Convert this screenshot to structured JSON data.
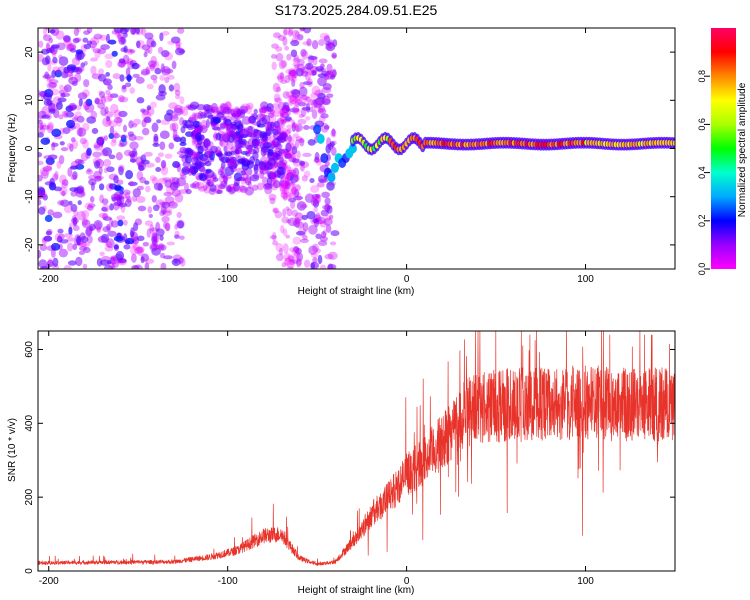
{
  "title": "S173.2025.284.09.51.E25",
  "colors": {
    "signal": "#e8332b",
    "frame": "#000000",
    "background": "#ffffff"
  },
  "chart_data": [
    {
      "type": "heatmap",
      "name": "spectrogram",
      "xlabel": "Height of straight line (km)",
      "ylabel": "Frequency (Hz)",
      "xlim": [
        -206,
        150
      ],
      "ylim": [
        -25,
        25
      ],
      "xticks": [
        -200,
        -100,
        0,
        100
      ],
      "yticks": [
        -20,
        -10,
        0,
        10,
        20
      ],
      "colorbar": {
        "label": "Normalized spectral amplitude",
        "range": [
          0,
          1
        ],
        "ticks": [
          "0.0",
          "0.2",
          "0.4",
          "0.6",
          "0.8"
        ],
        "colormap": [
          "#ff00ff",
          "#9900ff",
          "#0000ff",
          "#00aaff",
          "#00ffcc",
          "#00ff00",
          "#aaff00",
          "#ffff00",
          "#ff8800",
          "#ff0000",
          "#ff0066"
        ]
      },
      "features": {
        "noise_region_km": [
          -206,
          -40
        ],
        "noise_amplitude": 0.15,
        "carrier_start_km": -30,
        "carrier_frequency_hz": 1,
        "carrier_peak_amplitude": 0.9
      }
    },
    {
      "type": "line",
      "name": "snr",
      "xlabel": "Height of straight line (km)",
      "ylabel": "SNR (10 * v/v)",
      "xlim": [
        -206,
        150
      ],
      "ylim": [
        0,
        650
      ],
      "xticks": [
        -200,
        -100,
        0,
        100
      ],
      "yticks": [
        0,
        200,
        400,
        600
      ],
      "profile": {
        "x": [
          -206,
          -130,
          -110,
          -95,
          -80,
          -70,
          -60,
          -50,
          -40,
          -30,
          -20,
          -10,
          0,
          10,
          20,
          30,
          40,
          60,
          100,
          150
        ],
        "y": [
          22,
          25,
          38,
          55,
          95,
          100,
          35,
          18,
          25,
          80,
          150,
          200,
          260,
          300,
          350,
          415,
          445,
          450,
          455,
          450
        ]
      }
    }
  ]
}
